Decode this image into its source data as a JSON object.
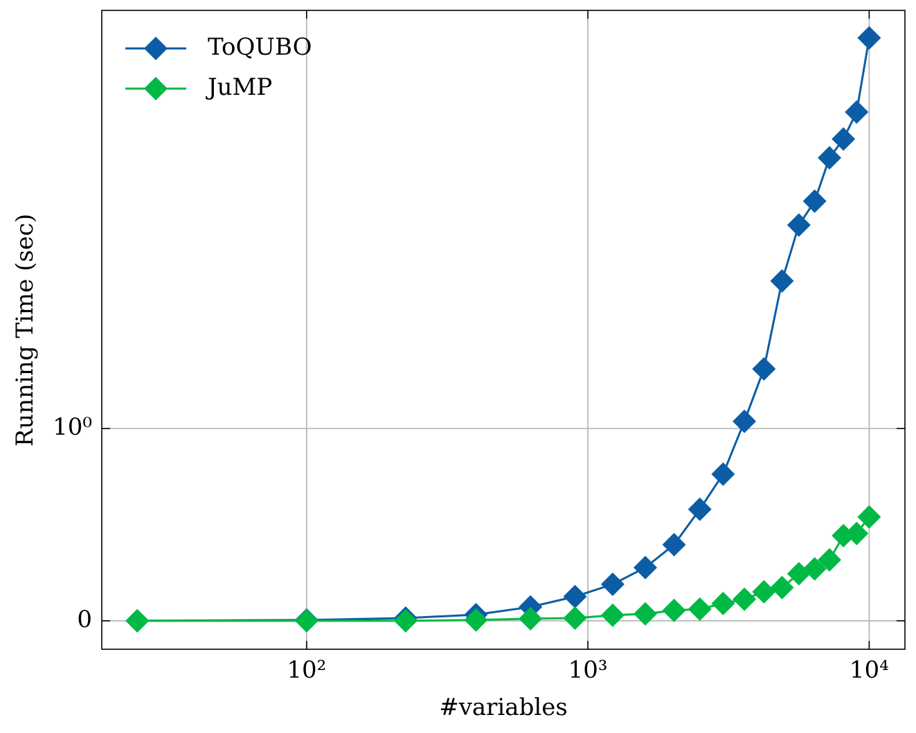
{
  "chart_data": {
    "type": "line",
    "x_label": "#variables",
    "y_label": "Running Time (sec)",
    "xscale": "log",
    "yscale": "symlog",
    "linthresh": 1,
    "xlim": [
      18.7,
      13400
    ],
    "ylim": [
      -0.148,
      261
    ],
    "xticks": [
      {
        "value": 100,
        "label": "10²"
      },
      {
        "value": 1000,
        "label": "10³"
      },
      {
        "value": 10000,
        "label": "10⁴"
      }
    ],
    "yticks": [
      0,
      {
        "value": 1,
        "label": "10⁰"
      }
    ],
    "grid": true,
    "legend": "upper left",
    "x": [
      25,
      100,
      225,
      400,
      625,
      900,
      1225,
      1600,
      2025,
      2500,
      3025,
      3600,
      4225,
      4900,
      5625,
      6400,
      7225,
      8100,
      9025,
      10000
    ],
    "series": [
      {
        "name": "ToQUBO",
        "color": "#0c5da5",
        "values": [
          0,
          0.004,
          0.014,
          0.032,
          0.072,
          0.126,
          0.19,
          0.277,
          0.396,
          0.58,
          0.763,
          1.1,
          2.21,
          7.13,
          15.0,
          20.6,
          36.7,
          47.1,
          67.5,
          181
        ]
      },
      {
        "name": "JuMP",
        "color": "#00b945",
        "values": [
          0,
          0,
          0,
          0.004,
          0.011,
          0.014,
          0.029,
          0.036,
          0.054,
          0.061,
          0.09,
          0.112,
          0.151,
          0.173,
          0.245,
          0.27,
          0.317,
          0.443,
          0.454,
          0.54
        ]
      }
    ]
  }
}
